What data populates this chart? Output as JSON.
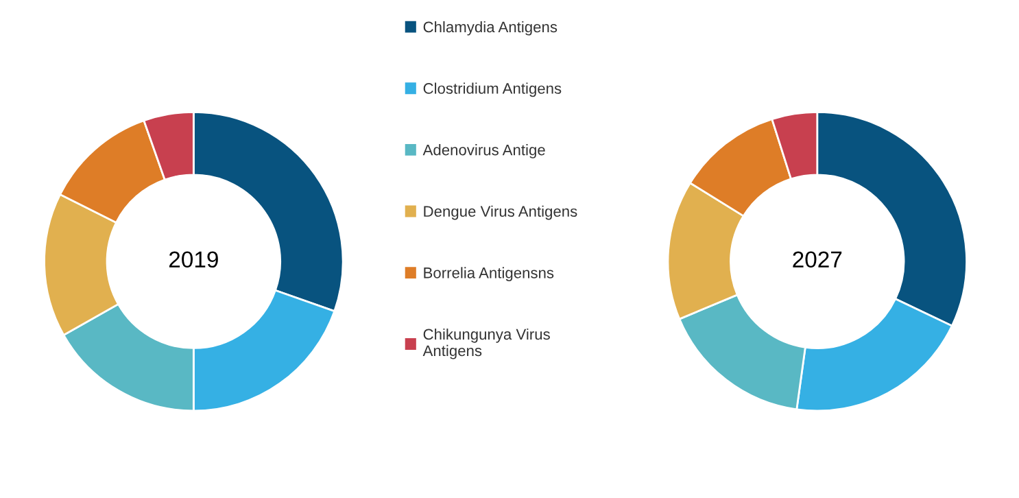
{
  "chart_data": [
    {
      "type": "donut",
      "title": "2019",
      "legend": "right",
      "categories": [
        "Chlamydia Antigens",
        "Clostridium Antigens",
        "Adenovirus Antige",
        "Dengue Virus Antigens",
        "Borrelia Antigensns",
        "Chikungunya Virus\nAntigens"
      ],
      "values": [
        30.4,
        19.6,
        16.8,
        15.6,
        12.2,
        5.4
      ],
      "colors": [
        "#08537f",
        "#35b0e4",
        "#59b8c4",
        "#e1b04f",
        "#de7d27",
        "#c8404f"
      ]
    },
    {
      "type": "donut",
      "title": "2027",
      "categories": [
        null,
        null,
        null,
        null,
        null,
        null
      ],
      "values": [
        32.1,
        20.1,
        16.5,
        15.1,
        11.3,
        4.9
      ],
      "colors": [
        "#08537f",
        "#35b0e4",
        "#59b8c4",
        "#e1b04f",
        "#de7d27",
        "#c8404f"
      ]
    }
  ]
}
